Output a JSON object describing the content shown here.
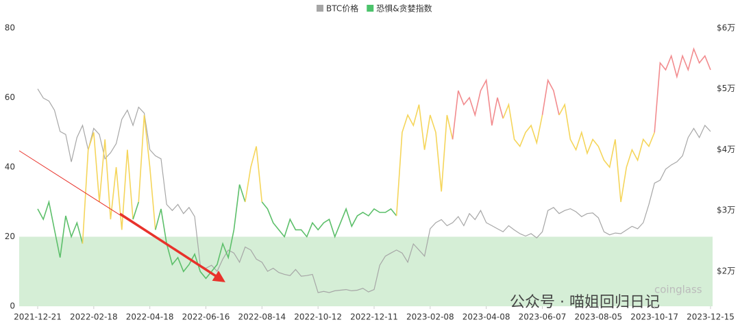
{
  "chart_data": {
    "type": "line",
    "categories": [
      "2021-12-21",
      null,
      null,
      null,
      null,
      null,
      null,
      null,
      null,
      null,
      "2022-02-18",
      null,
      null,
      null,
      null,
      null,
      null,
      null,
      null,
      null,
      "2022-04-18",
      null,
      null,
      null,
      null,
      null,
      null,
      null,
      null,
      null,
      "2022-06-16",
      null,
      null,
      null,
      null,
      null,
      null,
      null,
      null,
      null,
      "2022-08-14",
      null,
      null,
      null,
      null,
      null,
      null,
      null,
      null,
      null,
      "2022-10-12",
      null,
      null,
      null,
      null,
      null,
      null,
      null,
      null,
      null,
      "2022-12-11",
      null,
      null,
      null,
      null,
      null,
      null,
      null,
      null,
      null,
      "2023-02-08",
      null,
      null,
      null,
      null,
      null,
      null,
      null,
      null,
      null,
      "2023-04-08",
      null,
      null,
      null,
      null,
      null,
      null,
      null,
      null,
      null,
      "2023-06-07",
      null,
      null,
      null,
      null,
      null,
      null,
      null,
      null,
      null,
      "2023-08-05",
      null,
      null,
      null,
      null,
      null,
      null,
      null,
      null,
      null,
      "2023-10-17",
      null,
      null,
      null,
      null,
      null,
      null,
      null,
      null,
      null,
      "2023-12-15"
    ],
    "series": [
      {
        "name": "BTC价格",
        "color": "#a6a6a6",
        "axis": "y2",
        "values": [
          50000,
          48500,
          48000,
          46500,
          43000,
          42500,
          38000,
          42000,
          44000,
          40000,
          43500,
          42500,
          38500,
          39500,
          41000,
          45000,
          46500,
          44000,
          47000,
          46000,
          40000,
          39000,
          38500,
          31000,
          30000,
          31000,
          29500,
          30500,
          29000,
          21000,
          20500,
          21000,
          20000,
          22000,
          23500,
          23000,
          21500,
          24000,
          23500,
          22000,
          21500,
          20000,
          20500,
          19800,
          19500,
          19300,
          20300,
          19200,
          19300,
          19500,
          16500,
          16700,
          16500,
          16800,
          16900,
          17000,
          16800,
          16900,
          17200,
          16600,
          17000,
          21000,
          22500,
          23000,
          23500,
          23000,
          21500,
          24500,
          23500,
          22500,
          27000,
          28000,
          28500,
          27500,
          28000,
          29000,
          27500,
          29500,
          28500,
          30000,
          28000,
          27500,
          27000,
          26500,
          27500,
          26800,
          26200,
          25800,
          26200,
          25500,
          26500,
          30000,
          30500,
          29500,
          30000,
          30300,
          29800,
          29000,
          29500,
          29600,
          28800,
          26500,
          26000,
          26300,
          26200,
          26800,
          27400,
          27000,
          28000,
          31000,
          34500,
          35000,
          36800,
          37500,
          38000,
          39000,
          42000,
          43500,
          42000,
          44000,
          43000
        ]
      },
      {
        "name": "恐惧&贪婪指数",
        "color": "#4cc36b",
        "values": [
          28,
          25,
          30,
          22,
          14,
          26,
          20,
          24,
          18,
          45,
          50,
          30,
          48,
          25,
          40,
          22,
          45,
          25,
          30,
          55,
          40,
          22,
          28,
          18,
          12,
          14,
          10,
          12,
          15,
          10,
          8,
          10,
          12,
          18,
          14,
          22,
          35,
          30,
          40,
          46,
          30,
          28,
          24,
          22,
          20,
          25,
          22,
          22,
          20,
          24,
          22,
          24,
          25,
          20,
          24,
          28,
          23,
          26,
          27,
          26,
          28,
          27,
          27,
          28,
          26,
          50,
          55,
          52,
          58,
          45,
          55,
          50,
          33,
          55,
          48,
          62,
          58,
          60,
          55,
          62,
          65,
          52,
          60,
          54,
          58,
          48,
          46,
          50,
          52,
          47,
          55,
          65,
          62,
          55,
          58,
          48,
          45,
          50,
          44,
          48,
          46,
          42,
          40,
          48,
          30,
          40,
          45,
          42,
          48,
          46,
          50,
          70,
          68,
          72,
          66,
          72,
          68,
          74,
          70,
          72,
          68
        ],
        "threshold_colors": [
          {
            "from": 0,
            "to": 40,
            "color": "#5cbf6a"
          },
          {
            "from": 40,
            "to": 60,
            "color": "#f5d55a"
          },
          {
            "from": 60,
            "to": 80,
            "color": "#f28b8e"
          }
        ]
      }
    ],
    "ylim": [
      0,
      80
    ],
    "yticks": [
      0,
      20,
      40,
      60,
      80
    ],
    "y2lim": [
      14250,
      60000
    ],
    "y2ticks": [
      {
        "value": 20000,
        "label": "$2万"
      },
      {
        "value": 30000,
        "label": "$3万"
      },
      {
        "value": 40000,
        "label": "$4万"
      },
      {
        "value": 50000,
        "label": "$5万"
      },
      {
        "value": 60000,
        "label": "$6万"
      }
    ],
    "shaded_band": {
      "from": 0,
      "to": 20,
      "color": "#d5eed6"
    },
    "legend": "top",
    "grid": false,
    "watermark": {
      "text": "公众号 · 喵姐回归日记",
      "brand": "coinglass"
    }
  }
}
